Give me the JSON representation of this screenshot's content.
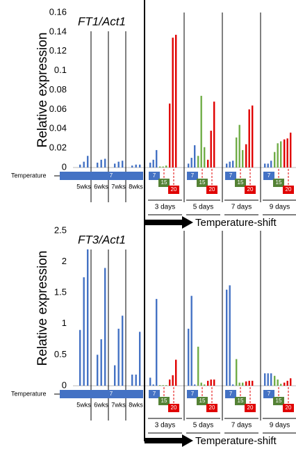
{
  "chart_data": [
    {
      "type": "bar",
      "title": "FT1/Act1",
      "y_label": "Relative expression",
      "ylim": [
        0,
        0.16
      ],
      "yticks": [
        0,
        0.02,
        0.04,
        0.06,
        0.08,
        0.1,
        0.12,
        0.14,
        0.16
      ],
      "temperature_label": "Temperature",
      "temperature_steps": [
        "7",
        "15",
        "20"
      ],
      "shift_label": "Temperature-shift",
      "before_groups": [
        {
          "label": "5wks",
          "color": "#4472c4",
          "values": [
            0.003,
            0.006,
            0.012
          ]
        },
        {
          "label": "6wks",
          "color": "#4472c4",
          "values": [
            0.005,
            0.008,
            0.009
          ]
        },
        {
          "label": "7wks",
          "color": "#4472c4",
          "values": [
            0.004,
            0.006,
            0.007
          ]
        },
        {
          "label": "8wks",
          "color": "#4472c4",
          "values": [
            0.002,
            0.003,
            0.003
          ]
        }
      ],
      "after_groups": [
        {
          "label": "3 days",
          "bars": [
            {
              "color": "#4472c4",
              "values": [
                0.005,
                0.008,
                0.018
              ]
            },
            {
              "color": "#70ad47",
              "values": [
                0.001,
                0.001,
                0.002
              ]
            },
            {
              "color": "#e00000",
              "values": [
                0.066,
                0.134,
                0.137
              ]
            }
          ]
        },
        {
          "label": "5 days",
          "bars": [
            {
              "color": "#4472c4",
              "values": [
                0.004,
                0.01,
                0.023
              ]
            },
            {
              "color": "#70ad47",
              "values": [
                0.012,
                0.074,
                0.021
              ]
            },
            {
              "color": "#e00000",
              "values": [
                0.008,
                0.038,
                0.068
              ]
            }
          ]
        },
        {
          "label": "7 days",
          "bars": [
            {
              "color": "#4472c4",
              "values": [
                0.004,
                0.006,
                0.007
              ]
            },
            {
              "color": "#70ad47",
              "values": [
                0.031,
                0.044,
                0.018
              ]
            },
            {
              "color": "#e00000",
              "values": [
                0.024,
                0.06,
                0.064
              ]
            }
          ]
        },
        {
          "label": "9 days",
          "bars": [
            {
              "color": "#4472c4",
              "values": [
                0.004,
                0.004,
                0.007
              ]
            },
            {
              "color": "#70ad47",
              "values": [
                0.016,
                0.025,
                0.027
              ]
            },
            {
              "color": "#e00000",
              "values": [
                0.029,
                0.03,
                0.036
              ]
            }
          ]
        }
      ]
    },
    {
      "type": "bar",
      "title": "FT3/Act1",
      "y_label": "Relative expression",
      "ylim": [
        0,
        2.5
      ],
      "yticks": [
        0,
        0.5,
        1,
        1.5,
        2,
        2.5
      ],
      "temperature_label": "Temperature",
      "temperature_steps": [
        "7",
        "15",
        "20"
      ],
      "shift_label": "Temperature-shift",
      "before_groups": [
        {
          "label": "5wks",
          "color": "#4472c4",
          "values": [
            0.9,
            1.75,
            2.2
          ]
        },
        {
          "label": "6wks",
          "color": "#4472c4",
          "values": [
            0.5,
            0.75,
            1.9
          ]
        },
        {
          "label": "7wks",
          "color": "#4472c4",
          "values": [
            0.33,
            0.92,
            1.13
          ]
        },
        {
          "label": "8wks",
          "color": "#4472c4",
          "values": [
            0.18,
            0.18,
            0.87
          ]
        }
      ],
      "after_groups": [
        {
          "label": "3 days",
          "bars": [
            {
              "color": "#4472c4",
              "values": [
                0.13,
                0.02,
                1.4
              ]
            },
            {
              "color": "#70ad47",
              "values": [
                0.01,
                0.01,
                0.01
              ]
            },
            {
              "color": "#e00000",
              "values": [
                0.1,
                0.17,
                0.42
              ]
            }
          ]
        },
        {
          "label": "5 days",
          "bars": [
            {
              "color": "#4472c4",
              "values": [
                0.92,
                1.45,
                0.02
              ]
            },
            {
              "color": "#70ad47",
              "values": [
                0.63,
                0.05,
                0.02
              ]
            },
            {
              "color": "#e00000",
              "values": [
                0.08,
                0.1,
                0.1
              ]
            }
          ]
        },
        {
          "label": "7 days",
          "bars": [
            {
              "color": "#4472c4",
              "values": [
                1.55,
                1.62,
                0.02
              ]
            },
            {
              "color": "#70ad47",
              "values": [
                0.43,
                0.05,
                0.05
              ]
            },
            {
              "color": "#e00000",
              "values": [
                0.07,
                0.08,
                0.08
              ]
            }
          ]
        },
        {
          "label": "9 days",
          "bars": [
            {
              "color": "#4472c4",
              "values": [
                0.2,
                0.2,
                0.2
              ]
            },
            {
              "color": "#70ad47",
              "values": [
                0.16,
                0.1,
                0.03
              ]
            },
            {
              "color": "#e00000",
              "values": [
                0.05,
                0.08,
                0.12
              ]
            }
          ]
        }
      ]
    }
  ]
}
